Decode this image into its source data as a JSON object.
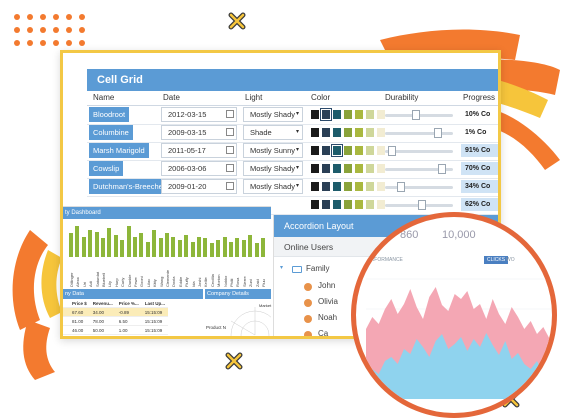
{
  "cell_grid": {
    "title": "Cell Grid",
    "columns": [
      "Name",
      "Date",
      "Light",
      "Color",
      "Durability",
      "Progress"
    ],
    "rows": [
      {
        "name": "Bloodroot",
        "date": "2012-03-15",
        "light": "Mostly Shady",
        "progress": "10% Co",
        "progress_value": 10,
        "durability": 0.45
      },
      {
        "name": "Columbine",
        "date": "2009-03-15",
        "light": "Shade",
        "progress": "1% Co",
        "progress_value": 1,
        "durability": 0.82
      },
      {
        "name": "Marsh Marigold",
        "date": "2011-05-17",
        "light": "Mostly Sunny",
        "progress": "91% Co",
        "progress_value": 91,
        "durability": 0.05
      },
      {
        "name": "Cowslip",
        "date": "2006-03-06",
        "light": "Mostly Shady",
        "progress": "70% Co",
        "progress_value": 70,
        "durability": 0.88
      },
      {
        "name": "Dutchman's-Breeches",
        "date": "2009-01-20",
        "light": "Mostly Shady",
        "progress": "34% Co",
        "progress_value": 34,
        "durability": 0.2
      },
      {
        "name": "",
        "date": "",
        "light": "",
        "progress": "62% Co",
        "progress_value": 62,
        "durability": 0.55
      }
    ],
    "color_swatches": [
      "#1a1a1a",
      "#2a3f55",
      "#1d5c6b",
      "#8aa33a",
      "#a9b83f",
      "#cfd79a",
      "#f2ecd2"
    ]
  },
  "dashboard": {
    "title": "ty Dashboard",
    "bar_labels": [
      "Dillinger",
      "Alexx",
      "Uri",
      "Adi",
      "Saturdat",
      "Bluebell",
      "Lily",
      "Hurp",
      "Curly",
      "Dunkle",
      "Fewe",
      "Gooni",
      "Lilac",
      "Kitty",
      "Wang",
      "Clemente",
      "Doola",
      "Eddie",
      "Fluffy",
      "Ida",
      "Joshi",
      "Kellie",
      "Cecillia",
      "Morton",
      "Nokko",
      "Philii",
      "Rosa",
      "Sierre",
      "Zuni",
      "Zaid",
      "Fluu"
    ],
    "bar_values": [
      0.7,
      0.9,
      0.6,
      0.8,
      0.75,
      0.55,
      0.85,
      0.65,
      0.5,
      0.9,
      0.6,
      0.7,
      0.45,
      0.8,
      0.55,
      0.7,
      0.6,
      0.5,
      0.65,
      0.45,
      0.6,
      0.55,
      0.4,
      0.5,
      0.6,
      0.45,
      0.55,
      0.5,
      0.65,
      0.4,
      0.55
    ],
    "data_title": "ny Data",
    "data_headers": [
      "",
      "Price $",
      "Revenu...",
      "Price %...",
      "Last Up..."
    ],
    "data_rows": [
      [
        "",
        "67.60",
        "34.00",
        "-0.89",
        "15:15:09"
      ],
      [
        "",
        "81.00",
        "78.00",
        "6.50",
        "15:15:09"
      ],
      [
        "",
        "46.00",
        "50.00",
        "1.00",
        "15:15:09"
      ],
      [
        "",
        "35.00",
        "65.00",
        "5.00",
        "15:15:09"
      ],
      [
        "",
        "39.00",
        "50.00",
        "4.00",
        "15:15:09"
      ]
    ],
    "company_title": "Company Details",
    "product_label": "Product N",
    "market_label": "Market"
  },
  "accordion": {
    "title": "Accordion Layout",
    "section": "Online Users",
    "group": "Family",
    "users": [
      "John",
      "Olivia",
      "Noah",
      "Ca"
    ]
  },
  "magnifier": {
    "stat1": "860",
    "stat1_sub": "",
    "stat2": "10,000",
    "stat2_sub": "",
    "header": "PERFORMANCE",
    "button": "CLICKS",
    "button2": "WO",
    "xlabel": ""
  },
  "colors": {
    "accent": "#5b9bd5",
    "window_border": "#f3c845",
    "orange": "#f37a2f",
    "circle_border": "#e4673a",
    "series_pink": "#f4a7b4",
    "series_blue": "#8fd3ee"
  }
}
